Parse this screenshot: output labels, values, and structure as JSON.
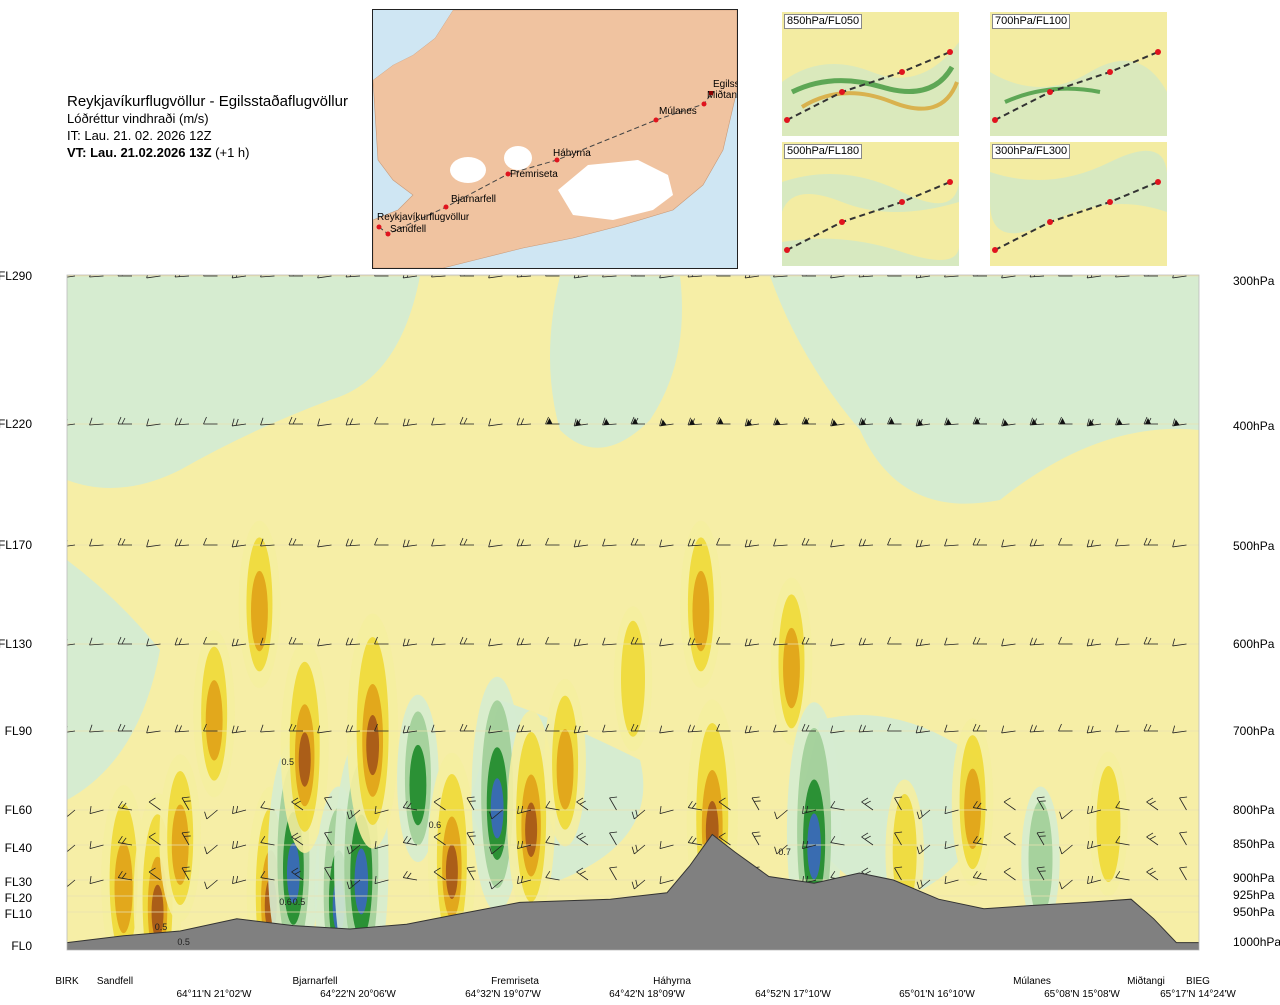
{
  "header": {
    "route": "Reykjavíkurflugvöllur - Egilsstaðaflugvöllur",
    "product": "Lóðréttur vindhraði (m/s)",
    "init_time": "IT: Lau. 21. 02. 2026 12Z",
    "valid_prefix": "VT: Lau. 21.02.2026 13Z",
    "valid_offset": "(+1 h)"
  },
  "map": {
    "waypoints": [
      {
        "name": "Reykjavíkurflugvöllur"
      },
      {
        "name": "Sandfell"
      },
      {
        "name": "Bjarnarfell"
      },
      {
        "name": "Fremriseta"
      },
      {
        "name": "Háhyrna"
      },
      {
        "name": "Múlanes"
      },
      {
        "name": "Miðtangi"
      },
      {
        "name": "Egilsstaðir"
      }
    ],
    "colors": {
      "sea": "#cfe6f3",
      "land": "#f0c3a0",
      "ice": "#ffffff",
      "route": "#444444",
      "point": "#e0141e"
    }
  },
  "mini_maps": [
    {
      "label": "850hPa/FL050"
    },
    {
      "label": "700hPa/FL100"
    },
    {
      "label": "500hPa/FL180"
    },
    {
      "label": "300hPa/FL300"
    }
  ],
  "chart_data": {
    "type": "heatmap",
    "title": "Lóðréttur vindhraði (m/s)",
    "left_levels": [
      "FL290",
      "FL220",
      "FL170",
      "FL130",
      "FL90",
      "FL60",
      "FL40",
      "FL30",
      "FL20",
      "FL10",
      "FL0"
    ],
    "right_levels": [
      "300hPa",
      "400hPa",
      "500hPa",
      "600hPa",
      "700hPa",
      "800hPa",
      "850hPa",
      "900hPa",
      "925hPa",
      "950hPa",
      "1000hPa"
    ],
    "pressure_hpa": [
      300,
      400,
      500,
      600,
      700,
      800,
      850,
      900,
      925,
      950,
      1000
    ],
    "locations": [
      {
        "name": "BIRK",
        "coord": ""
      },
      {
        "name": "Sandfell",
        "coord": ""
      },
      {
        "name": "",
        "coord": "64°11'N 21°02'W"
      },
      {
        "name": "Bjarnarfell",
        "coord": "64°22'N 20°06'W"
      },
      {
        "name": "Fremriseta",
        "coord": "64°32'N 19°07'W"
      },
      {
        "name": "Háhyrna",
        "coord": "64°42'N 18°09'W"
      },
      {
        "name": "",
        "coord": "64°52'N 17°10'W"
      },
      {
        "name": "",
        "coord": "65°01'N 16°10'W"
      },
      {
        "name": "Múlanes",
        "coord": "65°08'N 15°08'W"
      },
      {
        "name": "Miðtangi",
        "coord": ""
      },
      {
        "name": "BIEG",
        "coord": "65°17'N 14°24'W"
      }
    ],
    "contour_labels": [
      "0.5",
      "0.5",
      "0.6",
      "0.5",
      "0.5",
      "0.6",
      "0.7"
    ],
    "terrain_profile_hpa": [
      {
        "d": 0.0,
        "p": 995
      },
      {
        "d": 0.05,
        "p": 985
      },
      {
        "d": 0.1,
        "p": 978
      },
      {
        "d": 0.15,
        "p": 960
      },
      {
        "d": 0.2,
        "p": 970
      },
      {
        "d": 0.25,
        "p": 975
      },
      {
        "d": 0.3,
        "p": 968
      },
      {
        "d": 0.34,
        "p": 955
      },
      {
        "d": 0.4,
        "p": 935
      },
      {
        "d": 0.48,
        "p": 930
      },
      {
        "d": 0.53,
        "p": 920
      },
      {
        "d": 0.55,
        "p": 880
      },
      {
        "d": 0.57,
        "p": 835
      },
      {
        "d": 0.59,
        "p": 860
      },
      {
        "d": 0.62,
        "p": 895
      },
      {
        "d": 0.66,
        "p": 905
      },
      {
        "d": 0.7,
        "p": 890
      },
      {
        "d": 0.73,
        "p": 900
      },
      {
        "d": 0.77,
        "p": 930
      },
      {
        "d": 0.81,
        "p": 945
      },
      {
        "d": 0.85,
        "p": 940
      },
      {
        "d": 0.9,
        "p": 935
      },
      {
        "d": 0.94,
        "p": 930
      },
      {
        "d": 0.96,
        "p": 960
      },
      {
        "d": 0.98,
        "p": 995
      },
      {
        "d": 1.0,
        "p": 995
      }
    ],
    "vertical_velocity": [
      {
        "d": 0.05,
        "p": 900,
        "w": 0.4
      },
      {
        "d": 0.08,
        "p": 930,
        "w": 0.5
      },
      {
        "d": 0.1,
        "p": 840,
        "w": 0.3
      },
      {
        "d": 0.13,
        "p": 680,
        "w": 0.3
      },
      {
        "d": 0.17,
        "p": 560,
        "w": 0.3
      },
      {
        "d": 0.18,
        "p": 920,
        "w": 0.5
      },
      {
        "d": 0.2,
        "p": 870,
        "w": -0.6
      },
      {
        "d": 0.21,
        "p": 720,
        "w": 0.5
      },
      {
        "d": 0.24,
        "p": 920,
        "w": -0.5
      },
      {
        "d": 0.26,
        "p": 880,
        "w": -0.7
      },
      {
        "d": 0.27,
        "p": 700,
        "w": 0.6
      },
      {
        "d": 0.31,
        "p": 760,
        "w": -0.3
      },
      {
        "d": 0.34,
        "p": 870,
        "w": 0.5
      },
      {
        "d": 0.38,
        "p": 780,
        "w": -0.6
      },
      {
        "d": 0.41,
        "p": 810,
        "w": 0.5
      },
      {
        "d": 0.44,
        "p": 740,
        "w": 0.3
      },
      {
        "d": 0.5,
        "p": 640,
        "w": 0.2
      },
      {
        "d": 0.56,
        "p": 560,
        "w": 0.3
      },
      {
        "d": 0.57,
        "p": 810,
        "w": 0.6
      },
      {
        "d": 0.64,
        "p": 620,
        "w": 0.3
      },
      {
        "d": 0.66,
        "p": 830,
        "w": -0.7
      },
      {
        "d": 0.74,
        "p": 860,
        "w": 0.2
      },
      {
        "d": 0.8,
        "p": 790,
        "w": 0.3
      },
      {
        "d": 0.86,
        "p": 870,
        "w": -0.2
      },
      {
        "d": 0.92,
        "p": 820,
        "w": 0.2
      }
    ],
    "colors": {
      "up_weak": "#f5eea0",
      "up": "#efd830",
      "up_strong": "#e0a218",
      "up_max": "#a85a18",
      "down_weak": "#d6ecd0",
      "down": "#9ccc94",
      "down_strong": "#1e8a2a",
      "down_max": "#3a6ab8",
      "terrain": "#808080"
    },
    "ylim_hpa": [
      1000,
      300
    ]
  }
}
